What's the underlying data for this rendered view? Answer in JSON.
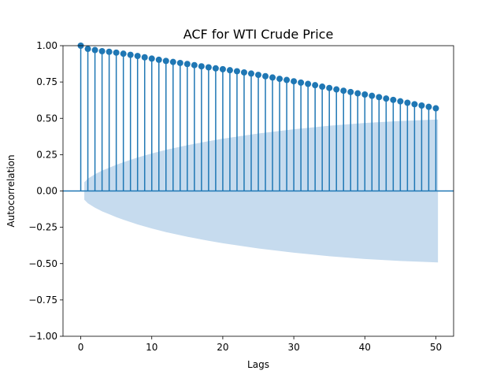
{
  "chart_data": {
    "type": "stem",
    "title": "ACF for WTI Crude Price",
    "xlabel": "Lags",
    "ylabel": "Autocorrelation",
    "xlim": [
      -2.5,
      52.5
    ],
    "ylim": [
      -1.0,
      1.0
    ],
    "xticks": [
      0,
      10,
      20,
      30,
      40,
      50
    ],
    "xtick_labels": [
      "0",
      "10",
      "20",
      "30",
      "40",
      "50"
    ],
    "yticks": [
      -1.0,
      -0.75,
      -0.5,
      -0.25,
      0.0,
      0.25,
      0.5,
      0.75,
      1.0
    ],
    "ytick_labels": [
      "−1.00",
      "−0.75",
      "−0.50",
      "−0.25",
      "0.00",
      "0.25",
      "0.50",
      "0.75",
      "1.00"
    ],
    "grid": false,
    "colors": {
      "stem": "#1f77b4",
      "confidence_band": "#c6dbee",
      "axes": "#000000"
    },
    "series": [
      {
        "lags": [
          0,
          1,
          2,
          3,
          4,
          5,
          6,
          7,
          8,
          9,
          10,
          11,
          12,
          13,
          14,
          15,
          16,
          17,
          18,
          19,
          20,
          21,
          22,
          23,
          24,
          25,
          26,
          27,
          28,
          29,
          30,
          31,
          32,
          33,
          34,
          35,
          36,
          37,
          38,
          39,
          40,
          41,
          42,
          43,
          44,
          45,
          46,
          47,
          48,
          49,
          50
        ],
        "values": [
          1.0,
          0.978,
          0.97,
          0.962,
          0.958,
          0.952,
          0.945,
          0.937,
          0.929,
          0.92,
          0.911,
          0.903,
          0.895,
          0.888,
          0.881,
          0.874,
          0.866,
          0.858,
          0.851,
          0.844,
          0.838,
          0.831,
          0.824,
          0.816,
          0.808,
          0.799,
          0.79,
          0.781,
          0.772,
          0.764,
          0.755,
          0.746,
          0.737,
          0.728,
          0.718,
          0.709,
          0.699,
          0.69,
          0.681,
          0.672,
          0.664,
          0.655,
          0.646,
          0.636,
          0.627,
          0.617,
          0.607,
          0.597,
          0.588,
          0.579,
          0.569
        ]
      }
    ],
    "confidence_band": {
      "lags": [
        0.5,
        1,
        2,
        3,
        4,
        5,
        6,
        8,
        10,
        12,
        15,
        18,
        20,
        25,
        30,
        35,
        40,
        45,
        50.3
      ],
      "upper": [
        0.06,
        0.085,
        0.115,
        0.14,
        0.16,
        0.18,
        0.198,
        0.23,
        0.258,
        0.283,
        0.315,
        0.343,
        0.36,
        0.396,
        0.425,
        0.449,
        0.468,
        0.482,
        0.492
      ]
    }
  }
}
